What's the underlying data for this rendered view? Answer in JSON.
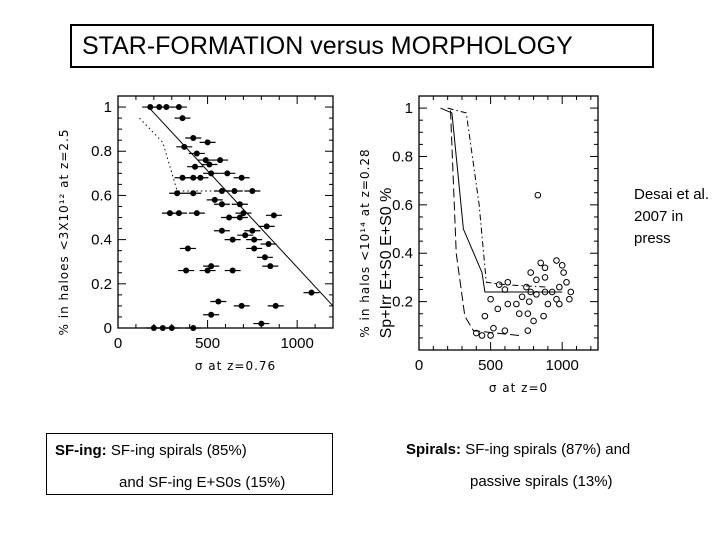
{
  "title": "STAR-FORMATION versus MORPHOLOGY",
  "citation": "Desai et al. 2007 in press",
  "caption_left": {
    "line1_bold": "SF-ing:",
    "line1_rest": "SF-ing spirals (85%)",
    "line2": "and SF-ing E+S0s (15%)"
  },
  "caption_right": {
    "line1_bold": "Spirals:",
    "line1_rest": "SF-ing spirals (87%) and",
    "line2": "passive spirals (13%)"
  },
  "chart_data": [
    {
      "type": "scatter",
      "xlabel": "σ at z=0.76",
      "ylabel": "% in haloes <3X10¹² at z=2.5",
      "xlim": [
        0,
        1200
      ],
      "ylim": [
        0,
        1.05
      ],
      "xticks": [
        "0",
        "500",
        "1000"
      ],
      "yticks": [
        "0",
        "0.2",
        "0.4",
        "0.6",
        "0.8",
        "1"
      ],
      "series": [
        {
          "marker": "filled-circle",
          "x_error_bars": true,
          "points": [
            [
              180,
              1.0
            ],
            [
              230,
              1.0
            ],
            [
              270,
              1.0
            ],
            [
              340,
              1.0
            ],
            [
              200,
              0.0
            ],
            [
              250,
              0.0
            ],
            [
              300,
              0.0
            ],
            [
              420,
              0.0
            ],
            [
              360,
              0.95
            ],
            [
              420,
              0.86
            ],
            [
              500,
              0.84
            ],
            [
              370,
              0.82
            ],
            [
              440,
              0.79
            ],
            [
              490,
              0.76
            ],
            [
              510,
              0.74
            ],
            [
              570,
              0.76
            ],
            [
              430,
              0.73
            ],
            [
              520,
              0.7
            ],
            [
              610,
              0.7
            ],
            [
              460,
              0.68
            ],
            [
              360,
              0.68
            ],
            [
              420,
              0.68
            ],
            [
              690,
              0.68
            ],
            [
              330,
              0.61
            ],
            [
              420,
              0.61
            ],
            [
              580,
              0.62
            ],
            [
              650,
              0.62
            ],
            [
              750,
              0.62
            ],
            [
              540,
              0.58
            ],
            [
              580,
              0.56
            ],
            [
              680,
              0.56
            ],
            [
              700,
              0.52
            ],
            [
              290,
              0.52
            ],
            [
              340,
              0.52
            ],
            [
              440,
              0.52
            ],
            [
              870,
              0.51
            ],
            [
              620,
              0.5
            ],
            [
              680,
              0.5
            ],
            [
              830,
              0.46
            ],
            [
              750,
              0.44
            ],
            [
              580,
              0.44
            ],
            [
              710,
              0.42
            ],
            [
              760,
              0.4
            ],
            [
              640,
              0.4
            ],
            [
              840,
              0.38
            ],
            [
              390,
              0.36
            ],
            [
              760,
              0.36
            ],
            [
              820,
              0.32
            ],
            [
              850,
              0.28
            ],
            [
              520,
              0.28
            ],
            [
              640,
              0.26
            ],
            [
              380,
              0.26
            ],
            [
              500,
              0.26
            ],
            [
              1080,
              0.16
            ],
            [
              560,
              0.12
            ],
            [
              690,
              0.1
            ],
            [
              880,
              0.1
            ],
            [
              520,
              0.06
            ],
            [
              800,
              0.02
            ]
          ]
        },
        {
          "name_shown": false,
          "style": "dotted-line",
          "points": [
            [
              120,
              0.95
            ],
            [
              250,
              0.84
            ],
            [
              330,
              0.62
            ],
            [
              760,
              0.62
            ]
          ]
        },
        {
          "name_shown": false,
          "style": "solid-line",
          "points": [
            [
              170,
              1.0
            ],
            [
              1200,
              0.1
            ]
          ]
        }
      ]
    },
    {
      "type": "scatter",
      "xlabel": "σ at z=0",
      "ylabel": "% in halos <10¹⁴ at z=0.28",
      "overlay_label": "Sp+Irr  E+S0  E+S0  %",
      "xlim": [
        0,
        1250
      ],
      "ylim": [
        0,
        1.05
      ],
      "xticks": [
        "0",
        "500",
        "1000"
      ],
      "yticks": [
        "0.2",
        "0.4",
        "0.6",
        "0.8",
        "1"
      ],
      "series": [
        {
          "marker": "open-circle",
          "points": [
            [
              440,
              0.06
            ],
            [
              500,
              0.06
            ],
            [
              400,
              0.07
            ],
            [
              600,
              0.08
            ],
            [
              760,
              0.08
            ],
            [
              520,
              0.09
            ],
            [
              800,
              0.12
            ],
            [
              460,
              0.14
            ],
            [
              700,
              0.15
            ],
            [
              760,
              0.15
            ],
            [
              870,
              0.14
            ],
            [
              550,
              0.17
            ],
            [
              620,
              0.19
            ],
            [
              680,
              0.19
            ],
            [
              900,
              0.19
            ],
            [
              770,
              0.2
            ],
            [
              980,
              0.19
            ],
            [
              1050,
              0.21
            ],
            [
              960,
              0.21
            ],
            [
              720,
              0.22
            ],
            [
              820,
              0.23
            ],
            [
              880,
              0.24
            ],
            [
              930,
              0.24
            ],
            [
              980,
              0.26
            ],
            [
              560,
              0.27
            ],
            [
              750,
              0.26
            ],
            [
              620,
              0.28
            ],
            [
              820,
              0.29
            ],
            [
              880,
              0.3
            ],
            [
              1030,
              0.28
            ],
            [
              780,
              0.32
            ],
            [
              880,
              0.34
            ],
            [
              1010,
              0.32
            ],
            [
              850,
              0.36
            ],
            [
              960,
              0.37
            ],
            [
              1000,
              0.35
            ],
            [
              500,
              0.21
            ],
            [
              780,
              0.24
            ],
            [
              1060,
              0.24
            ],
            [
              830,
              0.64
            ],
            [
              600,
              0.25
            ]
          ]
        },
        {
          "name_shown": false,
          "style": "solid-line",
          "points": [
            [
              150,
              1.0
            ],
            [
              230,
              0.98
            ],
            [
              310,
              0.5
            ],
            [
              440,
              0.32
            ],
            [
              460,
              0.24
            ],
            [
              1000,
              0.24
            ]
          ]
        },
        {
          "name_shown": false,
          "style": "dash-dot-line",
          "points": [
            [
              200,
              1.0
            ],
            [
              330,
              0.98
            ],
            [
              420,
              0.6
            ],
            [
              470,
              0.28
            ],
            [
              600,
              0.27
            ],
            [
              900,
              0.26
            ]
          ]
        },
        {
          "name_shown": false,
          "style": "long-dash-line",
          "points": [
            [
              220,
              0.99
            ],
            [
              260,
              0.4
            ],
            [
              320,
              0.14
            ],
            [
              380,
              0.08
            ],
            [
              700,
              0.06
            ]
          ]
        }
      ]
    }
  ]
}
